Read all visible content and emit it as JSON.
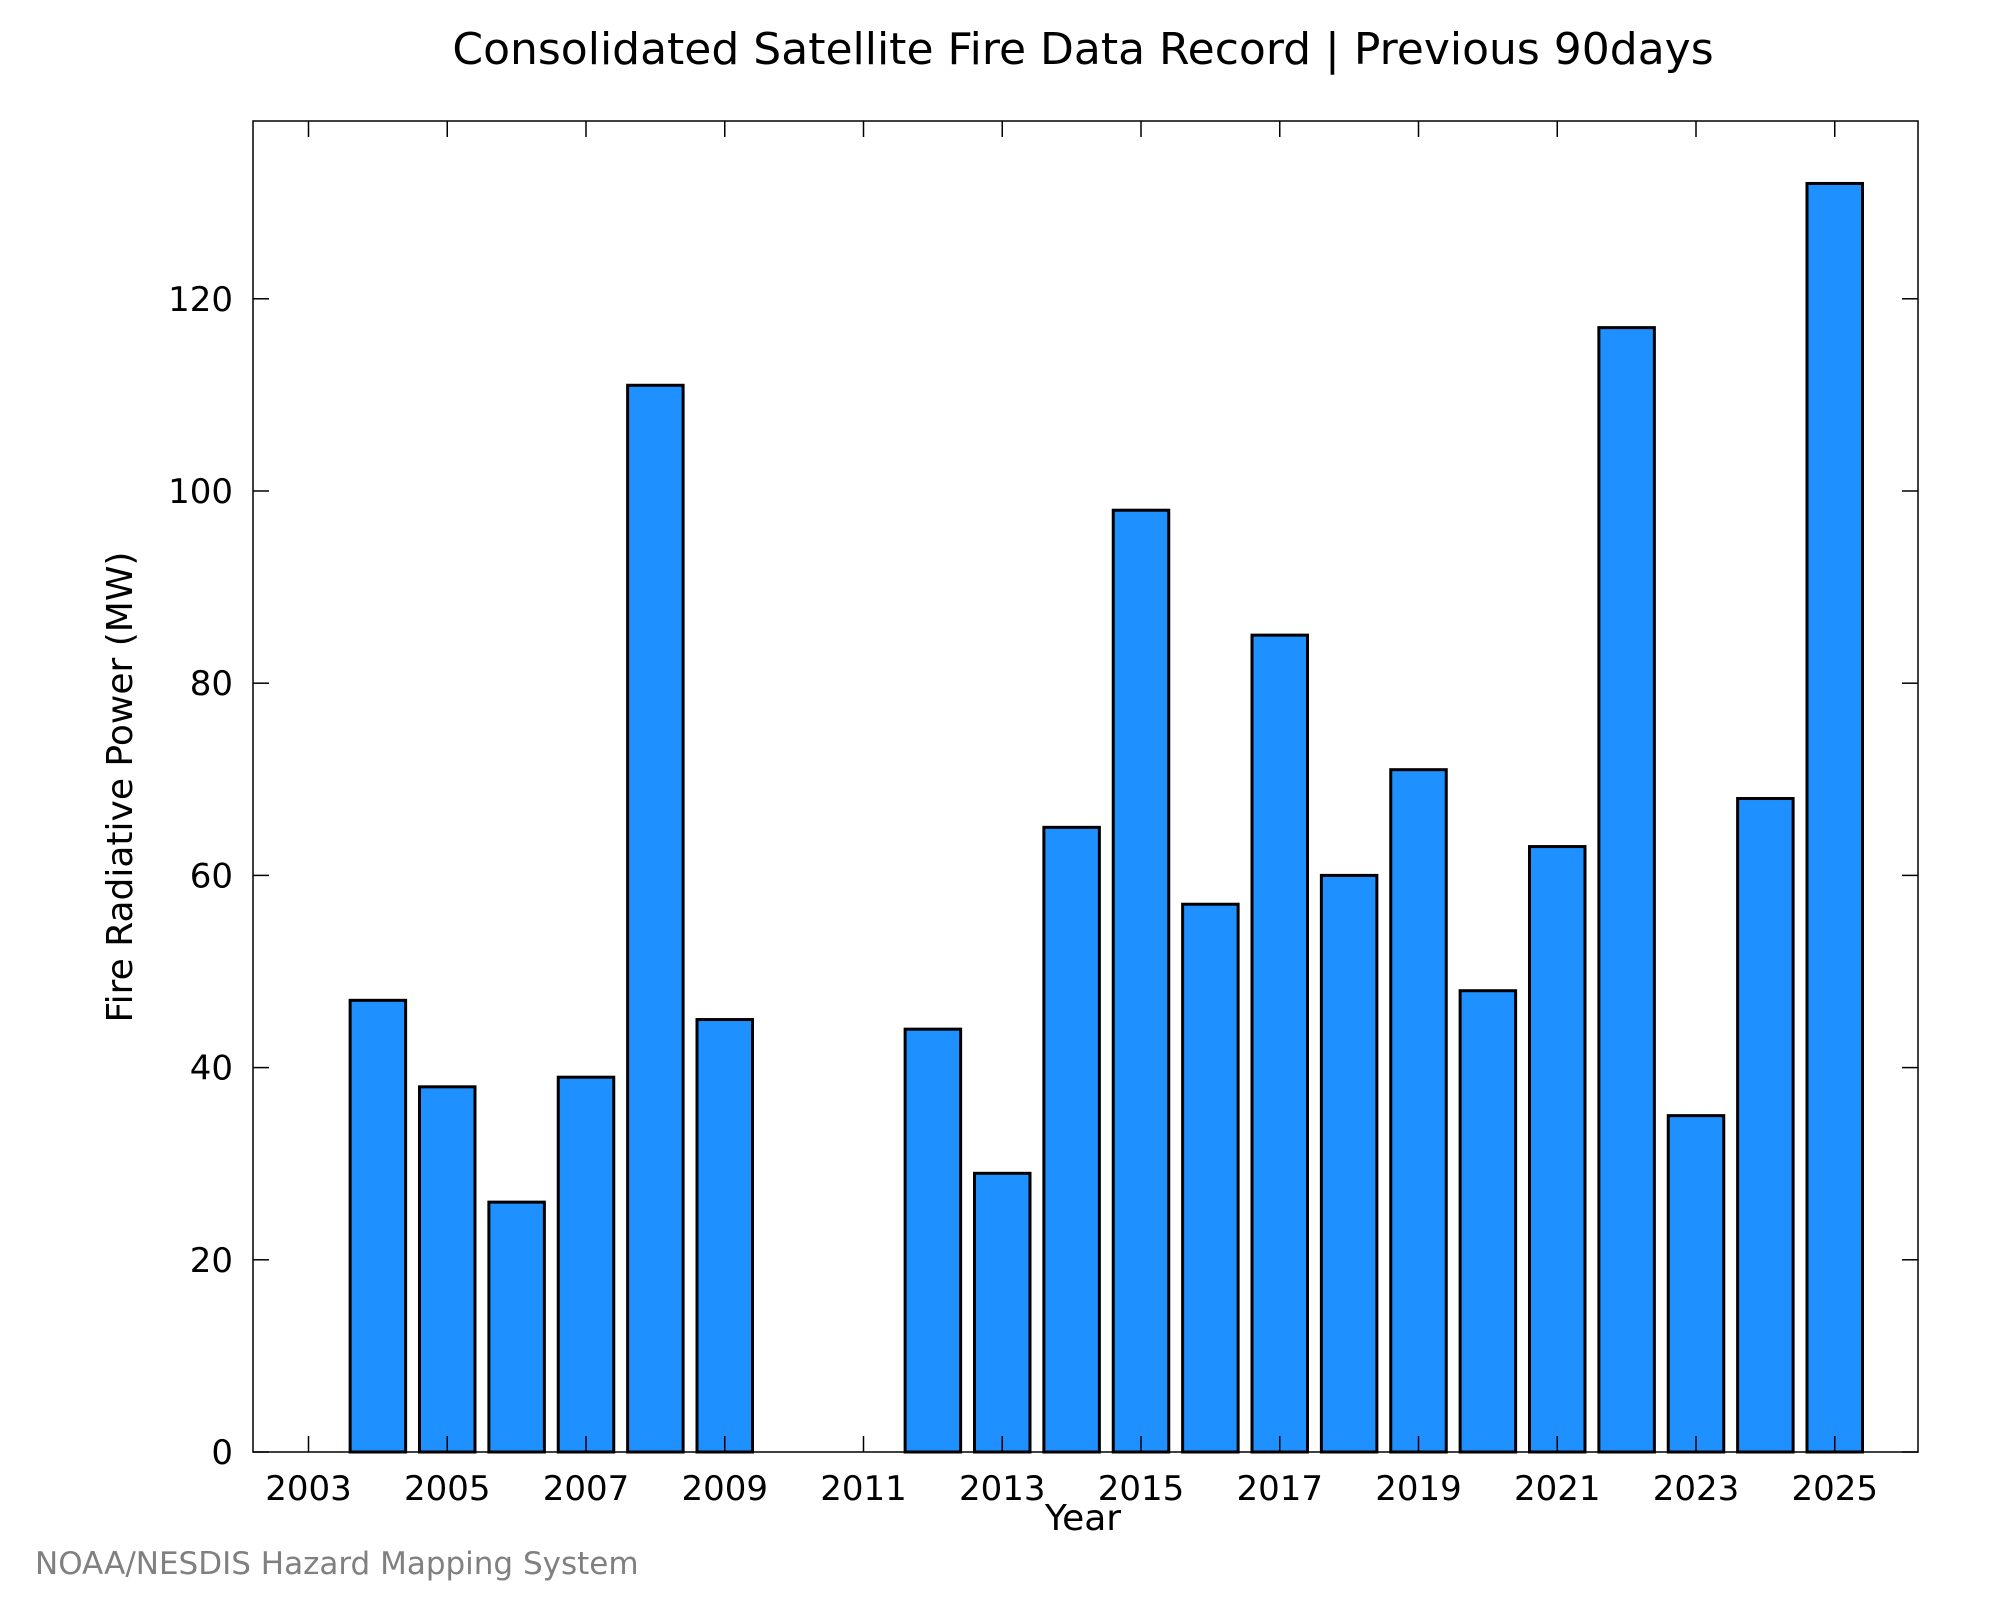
{
  "chart_data": {
    "type": "bar",
    "title": "Consolidated Satellite Fire Data Record | Previous 90days",
    "xlabel": "Year",
    "ylabel": "Fire Radiative Power (MW)",
    "categories": [
      "2003",
      "2004",
      "2005",
      "2006",
      "2007",
      "2008",
      "2009",
      "2010",
      "2011",
      "2012",
      "2013",
      "2014",
      "2015",
      "2016",
      "2017",
      "2018",
      "2019",
      "2020",
      "2021",
      "2022",
      "2023",
      "2024",
      "2025"
    ],
    "values": [
      0,
      47,
      38,
      26,
      39,
      111,
      45,
      0,
      0,
      44,
      29,
      65,
      98,
      57,
      85,
      60,
      71,
      48,
      63,
      117,
      35,
      68,
      132
    ],
    "x_tick_labels": [
      "2003",
      "2005",
      "2007",
      "2009",
      "2011",
      "2013",
      "2015",
      "2017",
      "2019",
      "2021",
      "2023",
      "2025"
    ],
    "y_ticks": [
      0,
      20,
      40,
      60,
      80,
      100,
      120
    ],
    "ylim": [
      0,
      138.5
    ],
    "xlim": [
      2002.2,
      2026.2
    ],
    "grid": false,
    "legend": "none",
    "bar_color": "#1E90FF",
    "bar_edge_color": "#000000"
  },
  "footer": {
    "credit": "NOAA/NESDIS Hazard Mapping System"
  }
}
